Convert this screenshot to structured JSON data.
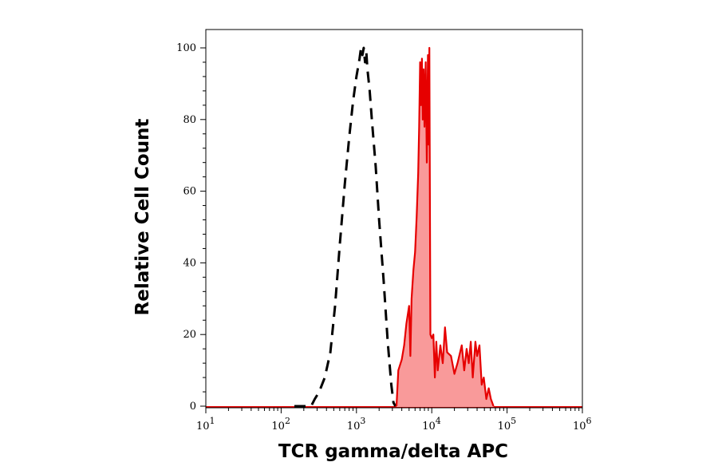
{
  "chart_data": {
    "type": "area",
    "title": "",
    "xlabel": "TCR gamma/delta APC",
    "ylabel": "Relative Cell Count",
    "x_scale": "log",
    "xlim": [
      10,
      1000000
    ],
    "ylim": [
      0,
      100
    ],
    "x_tick_labels": [
      {
        "base": "10",
        "exp": "1",
        "value": 10
      },
      {
        "base": "10",
        "exp": "2",
        "value": 100
      },
      {
        "base": "10",
        "exp": "3",
        "value": 1000
      },
      {
        "base": "10",
        "exp": "4",
        "value": 10000
      },
      {
        "base": "10",
        "exp": "5",
        "value": 100000
      },
      {
        "base": "10",
        "exp": "6",
        "value": 1000000
      }
    ],
    "y_ticks": [
      "0",
      "20",
      "40",
      "60",
      "80",
      "100"
    ],
    "grid": false,
    "colors": {
      "sample_fill": "#f99a9a",
      "sample_line": "#e60000",
      "control_line": "#000000"
    },
    "series": [
      {
        "style": "dashed-black",
        "points": [
          [
            150,
            0
          ],
          [
            250,
            0
          ],
          [
            280,
            2
          ],
          [
            320,
            4
          ],
          [
            380,
            8
          ],
          [
            450,
            15
          ],
          [
            520,
            28
          ],
          [
            600,
            45
          ],
          [
            700,
            62
          ],
          [
            800,
            75
          ],
          [
            900,
            85
          ],
          [
            1000,
            92
          ],
          [
            1100,
            97
          ],
          [
            1150,
            100
          ],
          [
            1200,
            98
          ],
          [
            1250,
            100
          ],
          [
            1300,
            96
          ],
          [
            1350,
            99
          ],
          [
            1400,
            94
          ],
          [
            1500,
            88
          ],
          [
            1600,
            80
          ],
          [
            1800,
            67
          ],
          [
            2000,
            52
          ],
          [
            2300,
            35
          ],
          [
            2600,
            18
          ],
          [
            2900,
            6
          ],
          [
            3100,
            1
          ],
          [
            3300,
            0
          ]
        ]
      },
      {
        "style": "filled-red",
        "points": [
          [
            3400,
            0
          ],
          [
            3600,
            10
          ],
          [
            4000,
            13
          ],
          [
            4300,
            17
          ],
          [
            4600,
            23
          ],
          [
            5000,
            28
          ],
          [
            5200,
            14
          ],
          [
            5400,
            30
          ],
          [
            5700,
            38
          ],
          [
            6000,
            43
          ],
          [
            6300,
            53
          ],
          [
            6600,
            65
          ],
          [
            6800,
            78
          ],
          [
            7000,
            96
          ],
          [
            7200,
            84
          ],
          [
            7400,
            97
          ],
          [
            7600,
            80
          ],
          [
            7800,
            94
          ],
          [
            8000,
            78
          ],
          [
            8300,
            96
          ],
          [
            8600,
            68
          ],
          [
            8900,
            98
          ],
          [
            9100,
            73
          ],
          [
            9300,
            100
          ],
          [
            9600,
            20
          ],
          [
            10000,
            19
          ],
          [
            10500,
            20
          ],
          [
            11000,
            8
          ],
          [
            11500,
            18
          ],
          [
            12000,
            10
          ],
          [
            13000,
            17
          ],
          [
            14000,
            12
          ],
          [
            15000,
            22
          ],
          [
            16000,
            15
          ],
          [
            18000,
            14
          ],
          [
            20000,
            9
          ],
          [
            22000,
            12
          ],
          [
            25000,
            17
          ],
          [
            27000,
            10
          ],
          [
            29000,
            16
          ],
          [
            31000,
            12
          ],
          [
            33000,
            18
          ],
          [
            35000,
            8
          ],
          [
            38000,
            18
          ],
          [
            40000,
            14
          ],
          [
            43000,
            17
          ],
          [
            46000,
            6
          ],
          [
            49000,
            8
          ],
          [
            53000,
            2
          ],
          [
            57000,
            5
          ],
          [
            61000,
            2
          ],
          [
            66000,
            0
          ]
        ]
      }
    ]
  }
}
